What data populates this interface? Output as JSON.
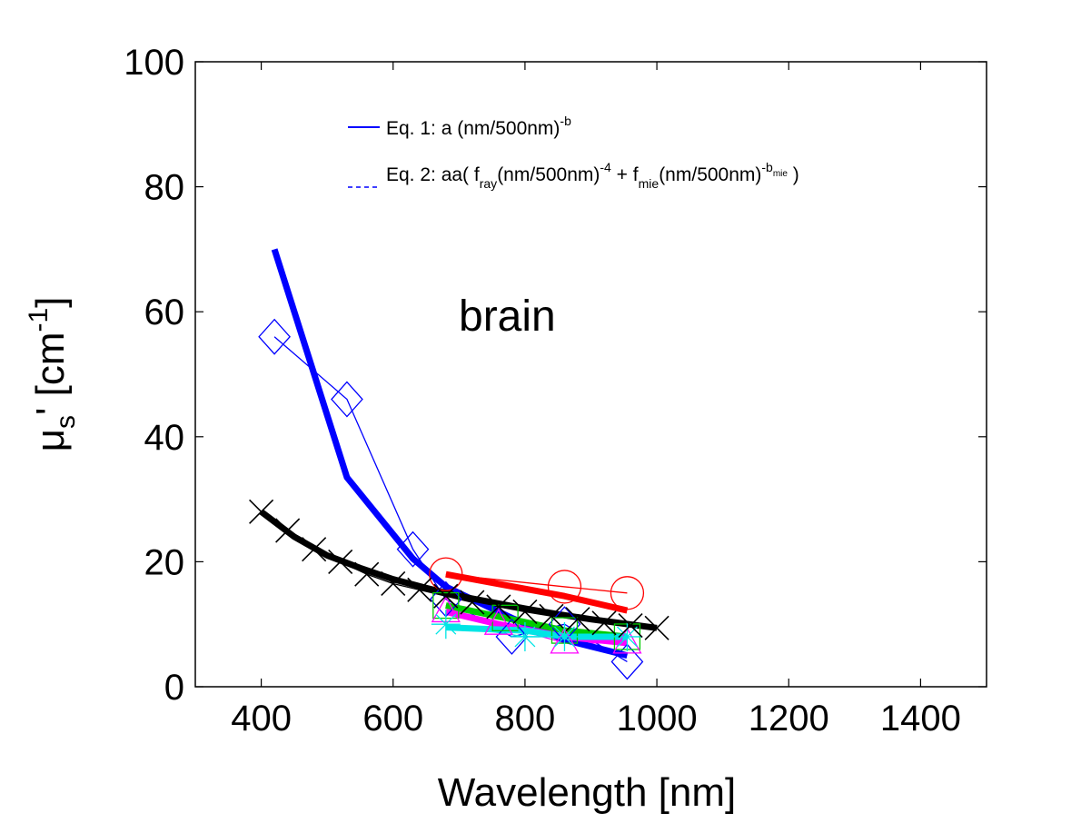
{
  "chart_data": {
    "type": "line",
    "xlabel": "Wavelength [nm]",
    "ylabel": {
      "main": "μ",
      "sub": "s",
      "mid": "' [cm",
      "sup": "-1",
      "end": "]"
    },
    "xlim": [
      300,
      1500
    ],
    "ylim": [
      0,
      100
    ],
    "xticks": [
      400,
      600,
      800,
      1000,
      1200,
      1400
    ],
    "yticks": [
      0,
      20,
      40,
      60,
      80,
      100
    ],
    "grid": false,
    "annotation": "brain",
    "legend": {
      "placement": "top",
      "eq1": {
        "text": "Eq. 1: a (nm/500nm)",
        "sup": "-b"
      },
      "eq2": {
        "p1": "Eq. 2: aa( f",
        "sub1": "ray",
        "p2": "(nm/500nm)",
        "sup1": "-4",
        "p3": " + f",
        "sub2": "mie",
        "p4": "(nm/500nm)",
        "sup2": "-b",
        "sup2sub": "mie",
        "p5": " )"
      }
    },
    "series": [
      {
        "color": "#0000ff",
        "marker": "diamond",
        "x": [
          420,
          530,
          630,
          680,
          780,
          860,
          955
        ],
        "y": [
          56,
          46,
          22,
          14,
          8,
          10,
          4
        ],
        "fit_x": [
          420,
          530,
          630,
          680,
          780,
          860,
          955
        ],
        "fit_y": [
          70,
          33.5,
          20.5,
          16,
          11,
          7.5,
          5
        ]
      },
      {
        "color": "#ff0000",
        "marker": "circle",
        "x": [
          680,
          860,
          955
        ],
        "y": [
          18,
          16,
          15
        ],
        "fit_x": [
          680,
          860,
          955
        ],
        "fit_y": [
          18,
          14.5,
          12.2
        ]
      },
      {
        "color": "#00cc00",
        "marker": "square",
        "x": [
          680,
          770,
          860,
          955
        ],
        "y": [
          13,
          11,
          9,
          8
        ],
        "fit_x": [
          680,
          770,
          860,
          955
        ],
        "fit_y": [
          13,
          11,
          9,
          8
        ]
      },
      {
        "color": "#ff00ff",
        "marker": "triangle",
        "x": [
          680,
          760,
          860,
          955
        ],
        "y": [
          12,
          10,
          7,
          7
        ],
        "fit_x": [
          680,
          760,
          860,
          955
        ],
        "fit_y": [
          12,
          10,
          8,
          7
        ]
      },
      {
        "color": "#00e5e5",
        "marker": "star",
        "x": [
          680,
          800,
          860,
          955
        ],
        "y": [
          10,
          8,
          8,
          8
        ],
        "fit_x": [
          680,
          800,
          860,
          955
        ],
        "fit_y": [
          9.5,
          9,
          8,
          8
        ]
      },
      {
        "color": "#000000",
        "marker": "x",
        "x": [
          400,
          440,
          480,
          520,
          560,
          600,
          640,
          680,
          720,
          760,
          800,
          840,
          880,
          920,
          960,
          1000
        ],
        "y": [
          28,
          25,
          22,
          20,
          18,
          16.5,
          15.5,
          14.5,
          13.5,
          12.8,
          12,
          11.3,
          10.8,
          10.2,
          9.8,
          9.4
        ],
        "fit_x": [
          400,
          450,
          500,
          550,
          600,
          650,
          700,
          750,
          800,
          850,
          900,
          950,
          1000
        ],
        "fit_y": [
          28,
          24,
          21,
          19,
          17.2,
          15.8,
          14.5,
          13.5,
          12.5,
          11.6,
          10.8,
          10.1,
          9.4
        ]
      }
    ]
  }
}
